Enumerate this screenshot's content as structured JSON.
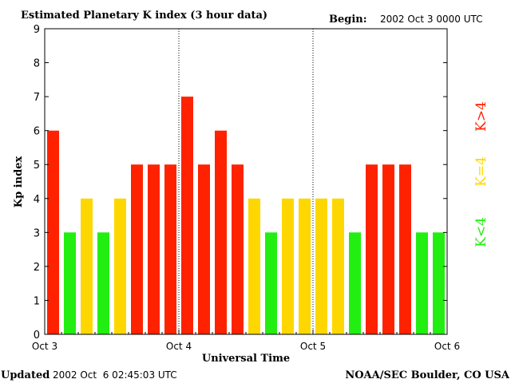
{
  "header": {
    "title": "Estimated Planetary K index (3 hour data)",
    "begin_label": "Begin:",
    "begin_value": "2002 Oct 3 0000 UTC"
  },
  "footer": {
    "updated_label": "Updated",
    "updated_value": "2002 Oct  6 02:45:03 UTC",
    "source": "NOAA/SEC Boulder, CO USA"
  },
  "legend": [
    {
      "label": "K>4",
      "color": "#ff2200"
    },
    {
      "label": "K=4",
      "color": "#ffd700"
    },
    {
      "label": "K<4",
      "color": "#22ee11"
    }
  ],
  "colors": {
    "high": "#ff2200",
    "equal": "#ffd700",
    "low": "#22ee11"
  },
  "chart_data": {
    "type": "bar",
    "ylabel": "Kp index",
    "xlabel": "Universal Time",
    "ylim": [
      0,
      9
    ],
    "yticks": [
      "0",
      "1",
      "2",
      "3",
      "4",
      "5",
      "6",
      "7",
      "8",
      "9"
    ],
    "xticks": [
      "Oct 3",
      "Oct 4",
      "Oct 5",
      "Oct 6"
    ],
    "values": [
      6,
      3,
      4,
      3,
      4,
      5,
      5,
      5,
      7,
      5,
      6,
      5,
      4,
      3,
      4,
      4,
      4,
      4,
      3,
      5,
      5,
      5,
      3,
      3
    ],
    "day_dividers_at_bar_index": [
      8,
      16
    ],
    "grid": false,
    "legend_placement": "right"
  }
}
